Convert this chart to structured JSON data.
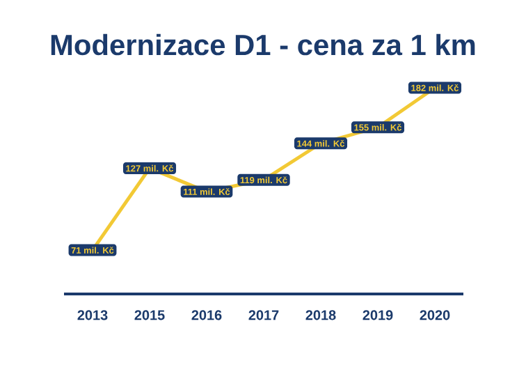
{
  "chart_data": {
    "type": "line",
    "title": "Modernizace D1 - cena za 1 km",
    "categories": [
      "2013",
      "2015",
      "2016",
      "2017",
      "2018",
      "2019",
      "2020"
    ],
    "values": [
      71,
      127,
      111,
      119,
      144,
      155,
      182
    ],
    "value_labels": [
      "71 mil. Kč",
      "127 mil. Kč",
      "111 mil. Kč",
      "119 mil. Kč",
      "144 mil. Kč",
      "155 mil. Kč",
      "182 mil. Kč"
    ],
    "color": "#f2c935",
    "marker": "none"
  }
}
